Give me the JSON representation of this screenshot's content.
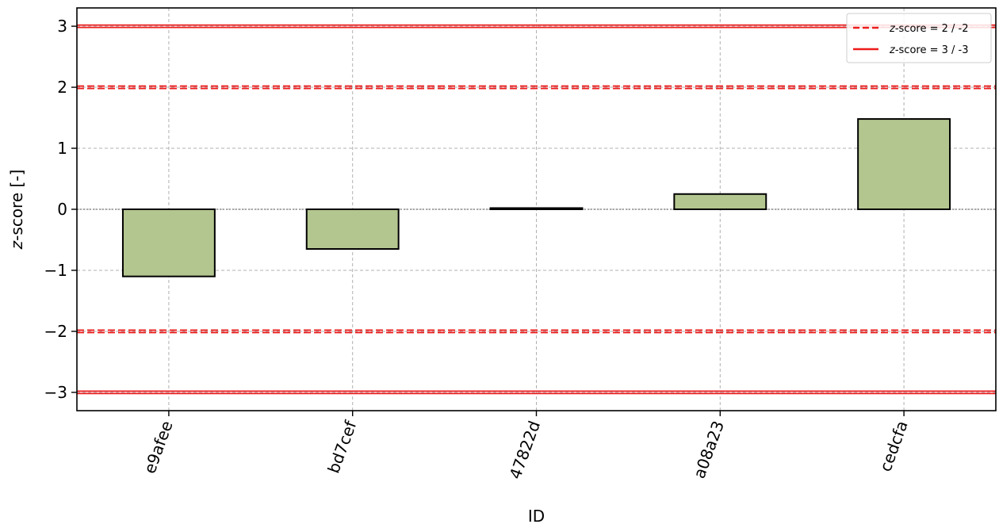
{
  "chart_data": {
    "type": "bar",
    "categories": [
      "e9afee",
      "bd7cef",
      "47822d",
      "a08a23",
      "cedcfa"
    ],
    "values": [
      -1.1,
      -0.65,
      0.02,
      0.25,
      1.48
    ],
    "xlabel": "ID",
    "ylabel_italic": "z",
    "ylabel_rest": "-score [-]",
    "ylim": [
      -3.3,
      3.3
    ],
    "yticks": [
      3,
      2,
      1,
      0,
      -1,
      -2,
      -3
    ],
    "ytick_labels": [
      "3",
      "2",
      "1",
      "0",
      "−1",
      "−2",
      "−3"
    ],
    "grid": true,
    "bar_color": "#b3c68f",
    "bar_edge_color": "#000000",
    "reference_lines": [
      {
        "y": 3,
        "style": "solid"
      },
      {
        "y": -3,
        "style": "solid"
      },
      {
        "y": 2,
        "style": "dashed"
      },
      {
        "y": -2,
        "style": "dashed"
      }
    ],
    "reference_line_color": "#ee1c1c",
    "legend": {
      "position": "top-right",
      "entries": [
        {
          "italic": "z",
          "rest": "-score = 2 / -2",
          "style": "dashed"
        },
        {
          "italic": "z",
          "rest": "-score = 3 / -3",
          "style": "solid"
        }
      ]
    }
  }
}
